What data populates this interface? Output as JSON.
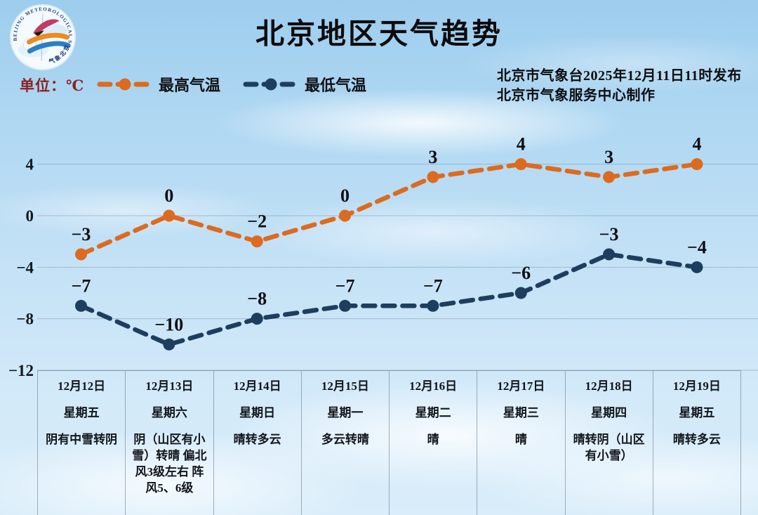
{
  "title": "北京地区天气趋势",
  "unit_label": "单位：℃",
  "publish": {
    "line1": "北京市气象台2025年12月11日11时发布",
    "line2": "北京市气象服务中心制作"
  },
  "legend": [
    {
      "label": "最高气温",
      "color": "#dc6b1f"
    },
    {
      "label": "最低气温",
      "color": "#1e3e5f"
    }
  ],
  "logo": {
    "ring_text": "BEIJING METEOROLOGICAL SERVICE",
    "bottom_text": "气象北京"
  },
  "colors": {
    "high_line": "#dc6b1f",
    "low_line": "#1e3e5f",
    "grid": "rgba(125,140,160,0.5)",
    "axis_label": "#17181c",
    "data_label": "#0e0e12",
    "unit_label": "#8b2121"
  },
  "chart_data": {
    "type": "line",
    "title": "北京地区天气趋势",
    "categories": [
      "12月12日",
      "12月13日",
      "12月14日",
      "12月15日",
      "12月16日",
      "12月17日",
      "12月18日",
      "12月19日"
    ],
    "weekdays": [
      "星期五",
      "星期六",
      "星期日",
      "星期一",
      "星期二",
      "星期三",
      "星期四",
      "星期五"
    ],
    "weather": [
      "阴有中雪转阴",
      "阴（山区有小雪）转晴 偏北风3级左右 阵风5、6级",
      "晴转多云",
      "多云转晴",
      "晴",
      "晴",
      "晴转阴（山区有小雪）",
      "晴转多云"
    ],
    "series": [
      {
        "name": "最高气温",
        "color": "#dc6b1f",
        "values": [
          -3,
          0,
          -2,
          0,
          3,
          4,
          3,
          4
        ]
      },
      {
        "name": "最低气温",
        "color": "#1e3e5f",
        "values": [
          -7,
          -10,
          -8,
          -7,
          -7,
          -6,
          -3,
          -4
        ]
      }
    ],
    "y_ticks": [
      4,
      0,
      -4,
      -8,
      -12
    ],
    "ylim": [
      -12,
      6
    ],
    "ylabel": "℃",
    "grid": true,
    "line_style": "dashed",
    "legend_position": "top-left"
  }
}
